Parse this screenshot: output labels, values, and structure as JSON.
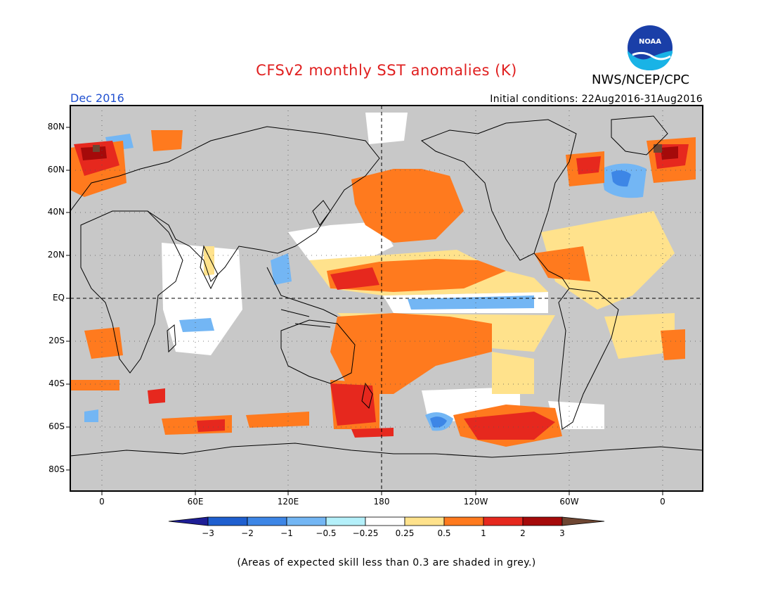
{
  "header": {
    "title": "CFSv2 monthly SST anomalies (K)",
    "org": "NWS/NCEP/CPC",
    "logo_text": "NOAA",
    "month": "Dec 2016",
    "initial_conditions": "Initial conditions: 22Aug2016-31Aug2016"
  },
  "map": {
    "projection": "cylindrical equidistant",
    "background_color": "#c8c8c8",
    "lat_labels": [
      "80N",
      "60N",
      "40N",
      "20N",
      "EQ",
      "20S",
      "40S",
      "60S",
      "80S"
    ],
    "lon_labels": [
      "0",
      "60E",
      "120E",
      "180",
      "120W",
      "60W",
      "0"
    ]
  },
  "colorbar": {
    "labels": [
      "−3",
      "−2",
      "−1",
      "−0.5",
      "−0.25",
      "0.25",
      "0.5",
      "1",
      "2",
      "3"
    ],
    "colors": [
      "#1e1e96",
      "#1f5fcf",
      "#3d86e6",
      "#73b6f4",
      "#b4f0fa",
      "#ffffff",
      "#ffe28c",
      "#ff7a1e",
      "#e6281e",
      "#a50a0a",
      "#6e4632"
    ]
  },
  "footer": {
    "note": "(Areas of expected skill less than 0.3 are shaded in grey.)"
  }
}
